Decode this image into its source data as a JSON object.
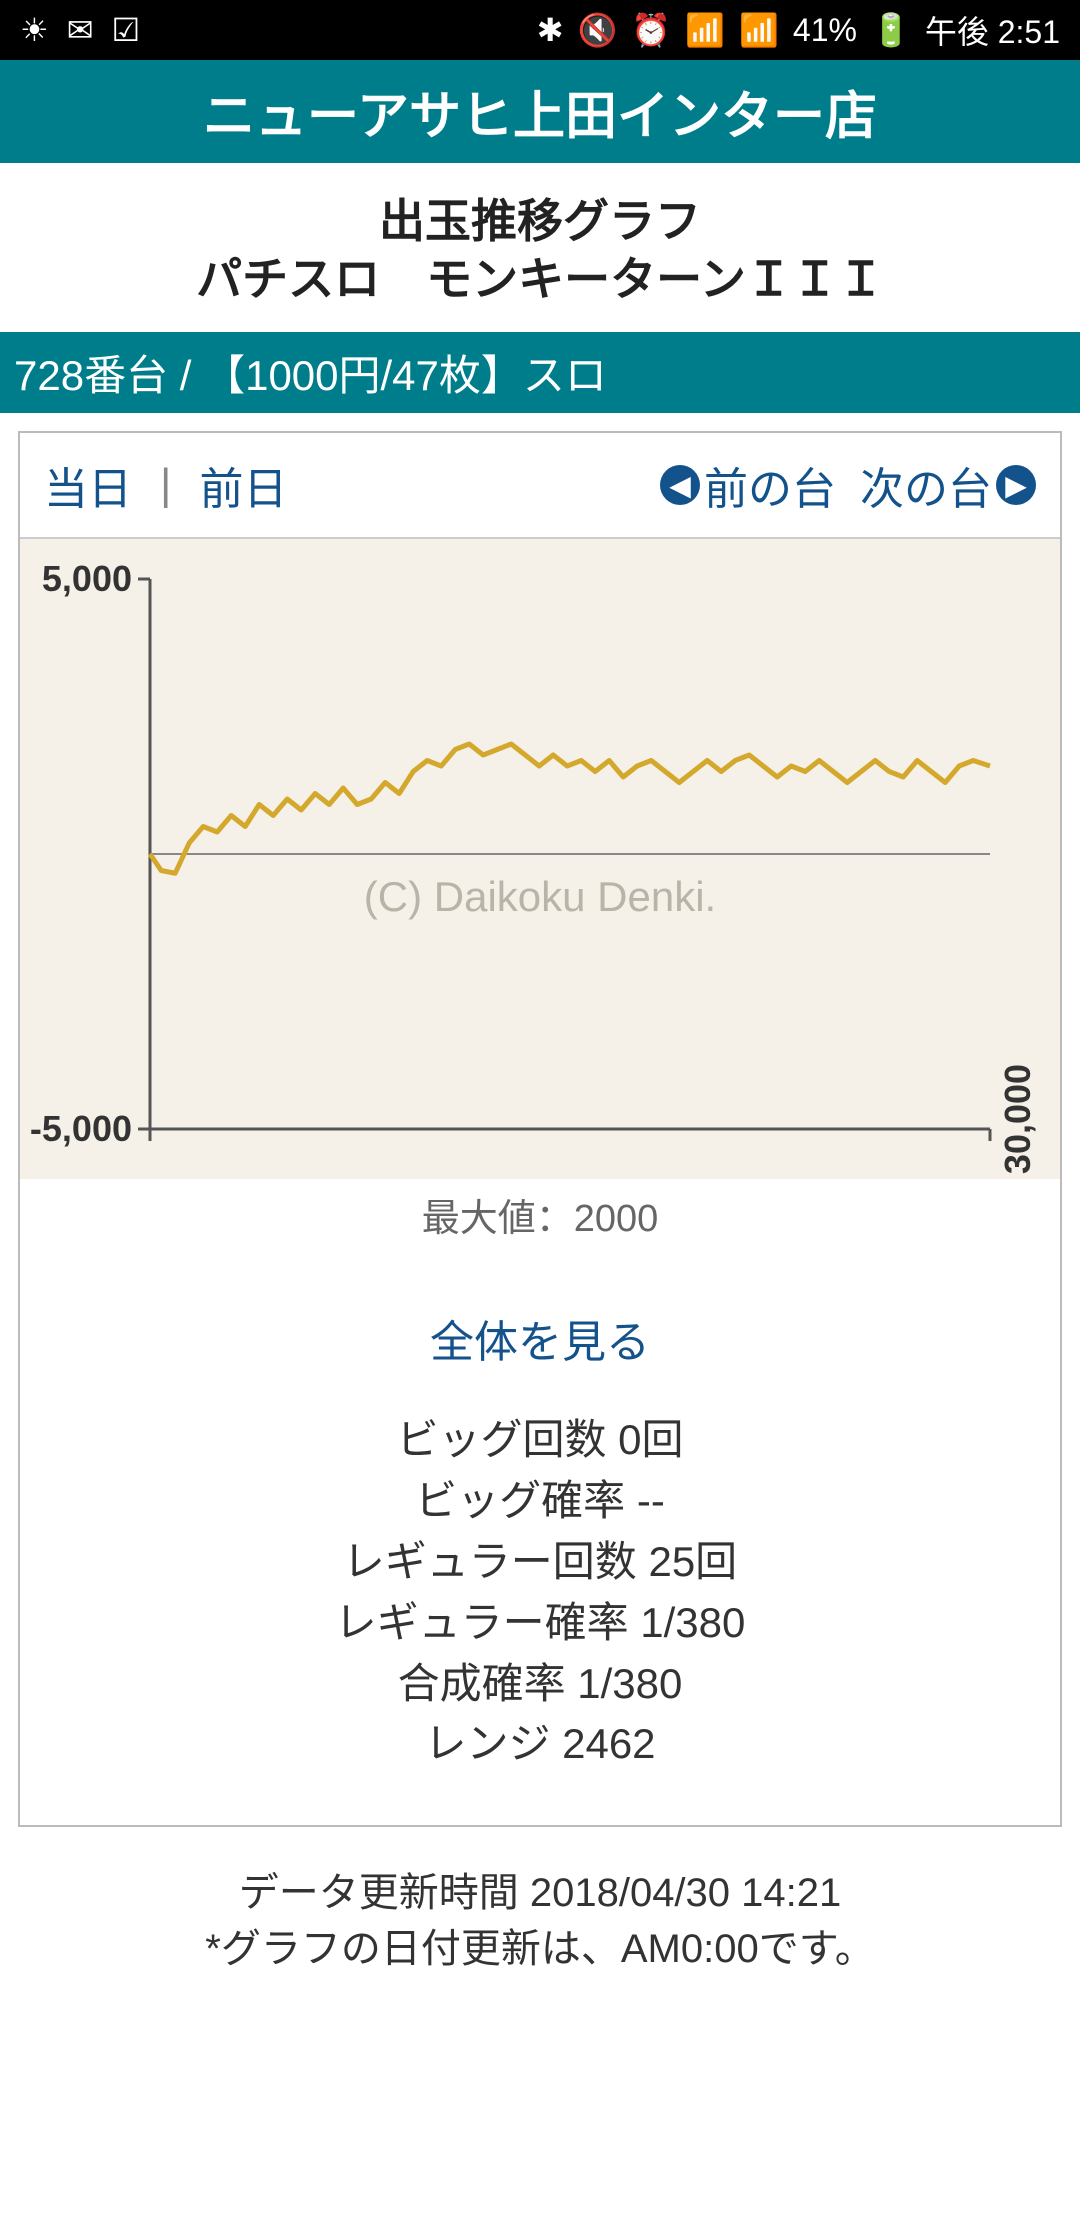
{
  "status_bar": {
    "left_icons": [
      "☀",
      "✉",
      "☑"
    ],
    "right_icons": [
      "✱",
      "🔇",
      "⏰",
      "📶",
      "📶"
    ],
    "battery_pct": "41%",
    "battery_icon": "🔋",
    "time": "午後 2:51"
  },
  "header": {
    "title": "ニューアサヒ上田インター店"
  },
  "page_title": {
    "line1": "出玉推移グラフ",
    "line2": "パチスロ　モンキーターンＩＩＩ"
  },
  "machine_bar": "728番台 / 【1000円/47枚】スロ",
  "tabs": {
    "today": "当日",
    "separator": "|",
    "yesterday": "前日",
    "prev_machine": "前の台",
    "next_machine": "次の台"
  },
  "chart": {
    "type": "line",
    "background_color": "#f5f1e8",
    "axis_color": "#555555",
    "center_line_color": "#888888",
    "line_color": "#d4a82c",
    "line_width": 5,
    "watermark": "(C) Daikoku Denki.",
    "y_top_label": "5,000",
    "y_bottom_label": "-5,000",
    "x_right_label": "30,000",
    "ylim": [
      -5000,
      5000
    ],
    "xlim": [
      0,
      30000
    ],
    "max_value_label": "最大値：2000",
    "y_label_fontsize": 36,
    "y_label_color": "#333333",
    "data": [
      [
        0,
        0
      ],
      [
        400,
        -300
      ],
      [
        900,
        -350
      ],
      [
        1400,
        200
      ],
      [
        1900,
        500
      ],
      [
        2400,
        400
      ],
      [
        2900,
        700
      ],
      [
        3400,
        500
      ],
      [
        3900,
        900
      ],
      [
        4400,
        700
      ],
      [
        4900,
        1000
      ],
      [
        5400,
        800
      ],
      [
        5900,
        1100
      ],
      [
        6400,
        900
      ],
      [
        6900,
        1200
      ],
      [
        7400,
        900
      ],
      [
        7900,
        1000
      ],
      [
        8400,
        1300
      ],
      [
        8900,
        1100
      ],
      [
        9400,
        1500
      ],
      [
        9900,
        1700
      ],
      [
        10400,
        1600
      ],
      [
        10900,
        1900
      ],
      [
        11400,
        2000
      ],
      [
        11900,
        1800
      ],
      [
        12400,
        1900
      ],
      [
        12900,
        2000
      ],
      [
        13400,
        1800
      ],
      [
        13900,
        1600
      ],
      [
        14400,
        1800
      ],
      [
        14900,
        1600
      ],
      [
        15400,
        1700
      ],
      [
        15900,
        1500
      ],
      [
        16400,
        1700
      ],
      [
        16900,
        1400
      ],
      [
        17400,
        1600
      ],
      [
        17900,
        1700
      ],
      [
        18400,
        1500
      ],
      [
        18900,
        1300
      ],
      [
        19400,
        1500
      ],
      [
        19900,
        1700
      ],
      [
        20400,
        1500
      ],
      [
        20900,
        1700
      ],
      [
        21400,
        1800
      ],
      [
        21900,
        1600
      ],
      [
        22400,
        1400
      ],
      [
        22900,
        1600
      ],
      [
        23400,
        1500
      ],
      [
        23900,
        1700
      ],
      [
        24400,
        1500
      ],
      [
        24900,
        1300
      ],
      [
        25400,
        1500
      ],
      [
        25900,
        1700
      ],
      [
        26400,
        1500
      ],
      [
        26900,
        1400
      ],
      [
        27400,
        1700
      ],
      [
        27900,
        1500
      ],
      [
        28400,
        1300
      ],
      [
        28900,
        1600
      ],
      [
        29400,
        1700
      ],
      [
        30000,
        1600
      ]
    ]
  },
  "view_all": "全体を見る",
  "stats": {
    "big_count": "ビッグ回数 0回",
    "big_prob": "ビッグ確率 --",
    "reg_count": "レギュラー回数 25回",
    "reg_prob": "レギュラー確率 1/380",
    "combined_prob": "合成確率 1/380",
    "range": "レンジ 2462"
  },
  "footer": {
    "update_time": "データ更新時間 2018/04/30 14:21",
    "note": "*グラフの日付更新は、AM0:00です。"
  }
}
